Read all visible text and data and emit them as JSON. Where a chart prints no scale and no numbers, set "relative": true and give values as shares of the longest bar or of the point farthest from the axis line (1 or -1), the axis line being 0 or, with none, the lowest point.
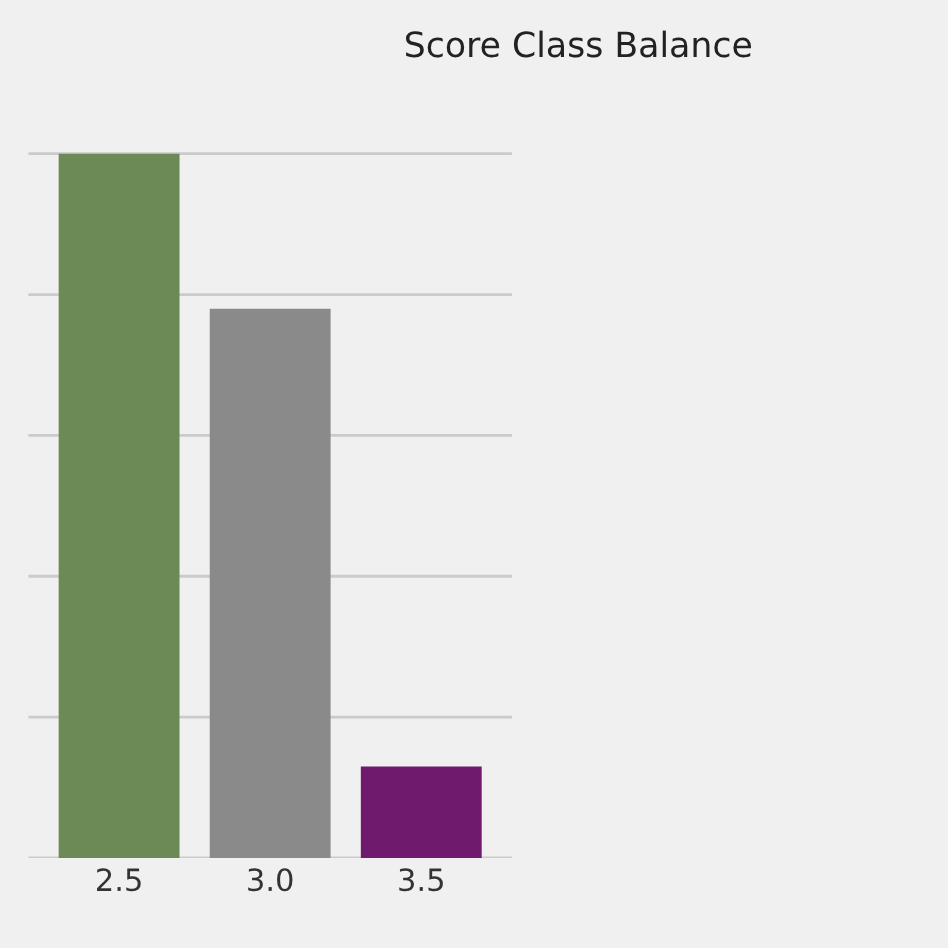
{
  "chart_data": {
    "type": "bar",
    "title": "Score Class Balance",
    "relative": true,
    "categories": [
      "2.5",
      "3.0",
      "3.5"
    ],
    "values": [
      1,
      0.78,
      0.13
    ],
    "colors": [
      "#6b8a56",
      "#8a8a8a",
      "#701a6e"
    ],
    "grid": "y"
  }
}
